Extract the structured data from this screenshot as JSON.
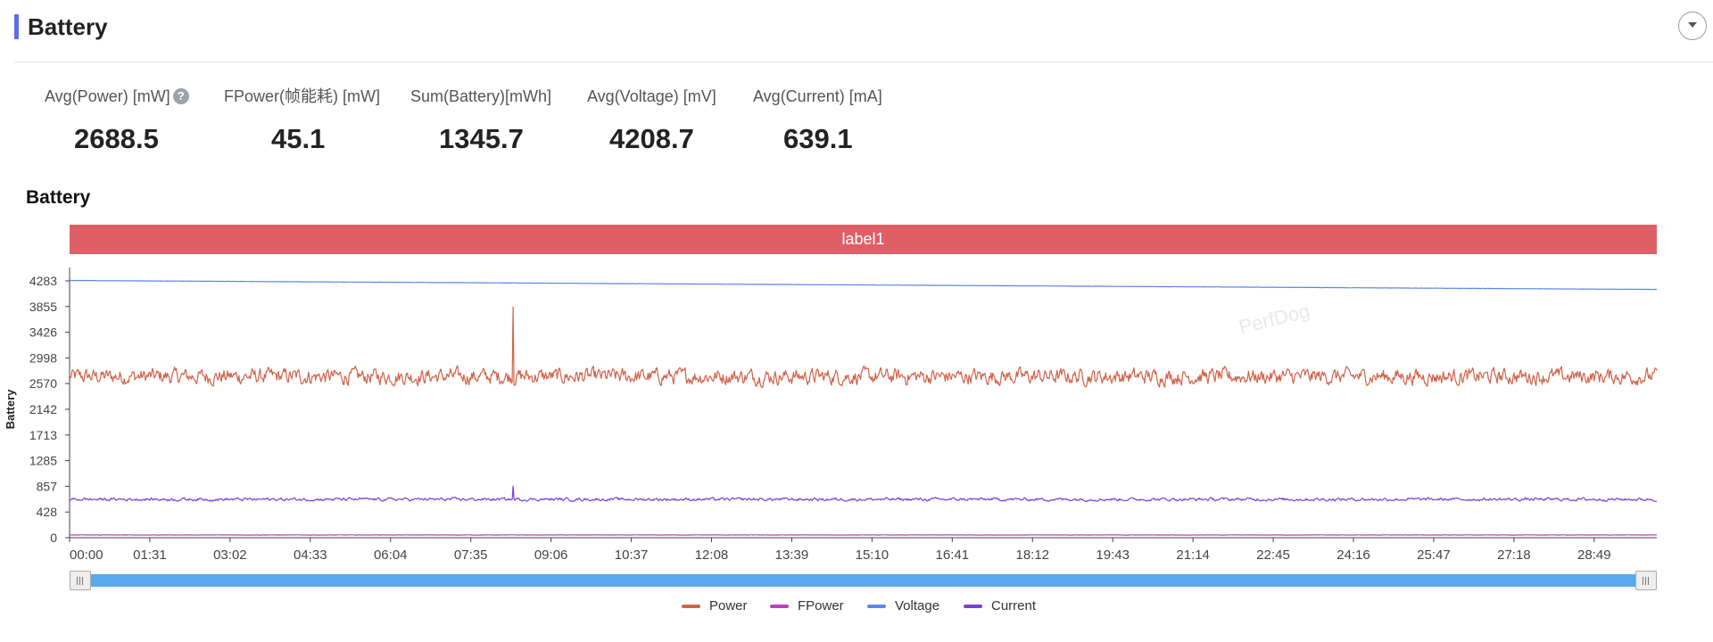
{
  "panel": {
    "title": "Battery"
  },
  "metrics": [
    {
      "label": "Avg(Power) [mW]",
      "value": "2688.5",
      "has_help": true
    },
    {
      "label": "FPower(帧能耗) [mW]",
      "value": "45.1"
    },
    {
      "label": "Sum(Battery)[mWh]",
      "value": "1345.7"
    },
    {
      "label": "Avg(Voltage) [mV]",
      "value": "4208.7"
    },
    {
      "label": "Avg(Current) [mA]",
      "value": "639.1"
    }
  ],
  "watermark": "PerfDog",
  "chart_data": {
    "type": "line",
    "title": "Battery",
    "ylabel": "Battery",
    "label_band": "label1",
    "y_ticks": [
      "4283",
      "3855",
      "3426",
      "2998",
      "2570",
      "2142",
      "1713",
      "1285",
      "857",
      "428",
      "0"
    ],
    "ylim": [
      0,
      4283
    ],
    "x_ticks": [
      "00:00",
      "01:31",
      "03:02",
      "04:33",
      "06:04",
      "07:35",
      "09:06",
      "10:37",
      "12:08",
      "13:39",
      "15:10",
      "16:41",
      "18:12",
      "19:43",
      "21:14",
      "22:45",
      "24:16",
      "25:47",
      "27:18",
      "28:49"
    ],
    "x_tick_seconds": [
      0,
      91,
      182,
      273,
      364,
      455,
      546,
      637,
      728,
      819,
      910,
      1001,
      1092,
      1183,
      1274,
      1365,
      1456,
      1547,
      1638,
      1729
    ],
    "x_range_seconds": [
      0,
      1800
    ],
    "sample_interval_seconds": 1,
    "series": [
      {
        "name": "Power",
        "color": "#d0634a",
        "mean": 2688.5,
        "spread": 230,
        "spike": {
          "x": 503,
          "y": 3850
        }
      },
      {
        "name": "FPower",
        "color": "#c23fb7",
        "mean": 45.1,
        "spread": 4
      },
      {
        "name": "Voltage",
        "color": "#5b86ee",
        "start": 4290,
        "end": 4140
      },
      {
        "name": "Current",
        "color": "#7b3fd6",
        "mean": 639.1,
        "spread": 45,
        "spike": {
          "x": 503,
          "y": 860
        }
      }
    ],
    "grid": false,
    "legend_position": "bottom-center"
  }
}
